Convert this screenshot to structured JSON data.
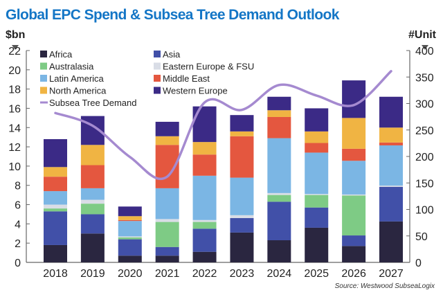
{
  "chart_data": {
    "type": "bar",
    "stacked": true,
    "title": "Global EPC Spend & Subsea Tree Demand Outlook",
    "ylabel": "$bn",
    "y2label": "#Unit",
    "ylim": [
      0,
      22
    ],
    "y2lim": [
      0,
      400
    ],
    "yticks": [
      0,
      2,
      4,
      6,
      8,
      10,
      12,
      14,
      16,
      18,
      20,
      22
    ],
    "y2ticks": [
      0,
      50,
      100,
      150,
      200,
      250,
      300,
      350,
      400
    ],
    "grid": false,
    "legend_placement": "top-left",
    "categories": [
      "2018",
      "2019",
      "2020",
      "2021",
      "2022",
      "2023",
      "2024",
      "2025",
      "2026",
      "2027"
    ],
    "series": [
      {
        "name": "Africa",
        "color": "#2a2640",
        "values": [
          1.8,
          3.0,
          0.7,
          0.7,
          1.1,
          3.1,
          2.3,
          3.6,
          1.7,
          4.25
        ]
      },
      {
        "name": "Asia",
        "color": "#4150a8",
        "values": [
          3.5,
          2.0,
          1.7,
          0.9,
          2.4,
          1.5,
          4.0,
          2.1,
          1.1,
          3.6
        ]
      },
      {
        "name": "Australasia",
        "color": "#7ecb85",
        "values": [
          0.3,
          1.1,
          0.2,
          2.6,
          0.7,
          0.0,
          0.7,
          1.3,
          4.15,
          0.0
        ]
      },
      {
        "name": "Eastern Europe & FSU",
        "color": "#d9dde6",
        "values": [
          0.4,
          0.4,
          0.1,
          0.3,
          0.2,
          0.3,
          0.2,
          0.1,
          0.1,
          0.12
        ]
      },
      {
        "name": "Latin America",
        "color": "#7bb6e4",
        "values": [
          1.4,
          1.2,
          1.6,
          3.2,
          4.6,
          3.9,
          5.7,
          4.3,
          3.5,
          4.18
        ]
      },
      {
        "name": "Middle East",
        "color": "#e4573f",
        "values": [
          1.5,
          2.4,
          0.1,
          4.5,
          2.2,
          4.3,
          2.2,
          1.0,
          1.25,
          0.3
        ]
      },
      {
        "name": "North America",
        "color": "#f0b443",
        "values": [
          1.0,
          2.1,
          0.4,
          0.9,
          1.3,
          0.5,
          0.7,
          1.2,
          3.2,
          1.55
        ]
      },
      {
        "name": "Western Europe",
        "color": "#3b2a86",
        "values": [
          2.9,
          3.0,
          1.0,
          1.5,
          3.7,
          1.7,
          1.4,
          2.4,
          3.9,
          3.2
        ]
      }
    ],
    "line": {
      "name": "Subsea Tree Demand",
      "color": "#a58ad0",
      "axis": "right",
      "values": [
        282,
        258,
        199,
        162,
        302,
        288,
        335,
        315,
        297,
        361
      ]
    },
    "source": "Source: Westwood SubseaLogix"
  }
}
